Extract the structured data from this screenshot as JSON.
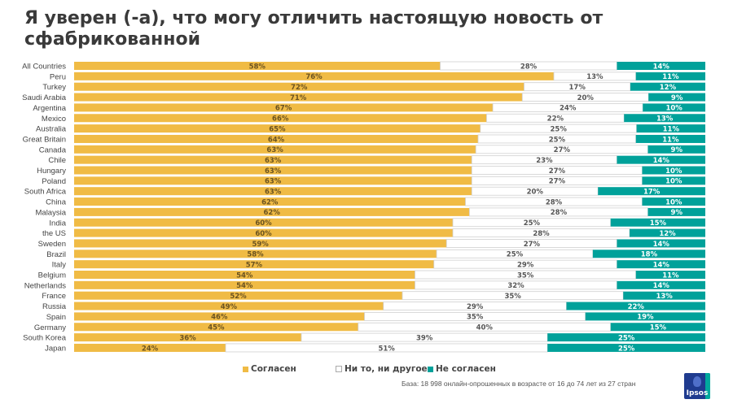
{
  "chart_data": {
    "type": "bar",
    "orientation": "horizontal",
    "stacked": true,
    "title": "Я уверен (-а), что могу отличить настоящую новость от сфабрикованной",
    "categories": [
      "All Countries",
      "Peru",
      "Turkey",
      "Saudi Arabia",
      "Argentina",
      "Mexico",
      "Australia",
      "Great Britain",
      "Canada",
      "Chile",
      "Hungary",
      "Poland",
      "South Africa",
      "China",
      "Malaysia",
      "India",
      "the US",
      "Sweden",
      "Brazil",
      "Italy",
      "Belgium",
      "Netherlands",
      "France",
      "Russia",
      "Spain",
      "Germany",
      "South Korea",
      "Japan"
    ],
    "series": [
      {
        "name": "Согласен",
        "color": "#f0bb45",
        "values": [
          58,
          76,
          72,
          71,
          67,
          66,
          65,
          64,
          63,
          63,
          63,
          63,
          63,
          62,
          62,
          60,
          60,
          59,
          58,
          57,
          54,
          54,
          52,
          49,
          46,
          45,
          36,
          24
        ]
      },
      {
        "name": "Ни то, ни другое",
        "color": "#ffffff",
        "values": [
          28,
          13,
          17,
          20,
          24,
          22,
          25,
          25,
          27,
          23,
          27,
          27,
          20,
          28,
          28,
          25,
          28,
          27,
          25,
          29,
          35,
          32,
          35,
          29,
          35,
          40,
          39,
          51
        ]
      },
      {
        "name": "Не согласен",
        "color": "#00a19a",
        "values": [
          14,
          11,
          12,
          9,
          10,
          13,
          11,
          11,
          9,
          14,
          10,
          10,
          17,
          10,
          9,
          15,
          12,
          14,
          18,
          14,
          11,
          14,
          13,
          22,
          19,
          15,
          25,
          25
        ]
      }
    ],
    "value_suffix": "%",
    "legend_position": "bottom",
    "grid": false
  },
  "footer": {
    "base_note": "База: 18 998 онлайн-опрошенных в возрасте от 16 до 74 лет из 27 стран",
    "logo_text": "Ipsos"
  }
}
